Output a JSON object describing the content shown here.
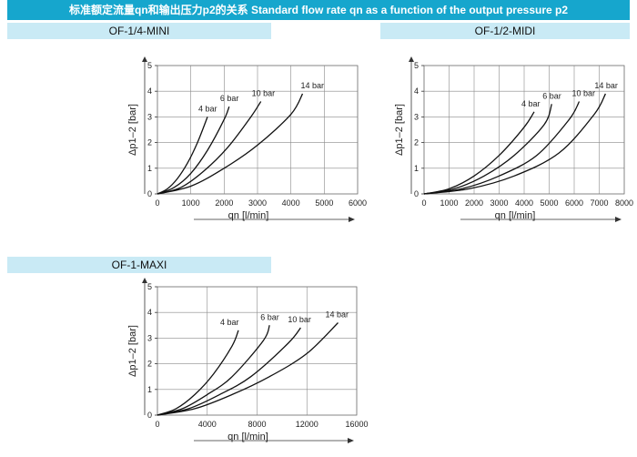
{
  "header": {
    "title": "标准额定流量qn和输出压力p2的关系 Standard flow rate qn as a function of the output pressure p2"
  },
  "chart_data": [
    {
      "type": "line",
      "title": "OF-1/4-MINI",
      "xlabel": "qn [l/min]",
      "ylabel": "Δp1–2 [bar]",
      "xlim": [
        0,
        6000
      ],
      "ylim": [
        0,
        5
      ],
      "xticks": [
        0,
        1000,
        2000,
        3000,
        4000,
        5000,
        6000
      ],
      "yticks": [
        0,
        1,
        2,
        3,
        4,
        5
      ],
      "grid": true,
      "series": [
        {
          "name": "4 bar",
          "x": [
            0,
            300,
            600,
            900,
            1200,
            1500
          ],
          "y": [
            0,
            0.2,
            0.6,
            1.2,
            2.0,
            3.0
          ]
        },
        {
          "name": "6 bar",
          "x": [
            0,
            500,
            1000,
            1500,
            2000,
            2150
          ],
          "y": [
            0,
            0.25,
            0.8,
            1.7,
            2.9,
            3.4
          ]
        },
        {
          "name": "10 bar",
          "x": [
            0,
            700,
            1400,
            2100,
            2800,
            3100
          ],
          "y": [
            0,
            0.25,
            0.9,
            1.8,
            3.0,
            3.6
          ]
        },
        {
          "name": "14 bar",
          "x": [
            0,
            1000,
            2000,
            3000,
            4000,
            4350
          ],
          "y": [
            0,
            0.3,
            1.0,
            1.9,
            3.1,
            3.9
          ]
        }
      ]
    },
    {
      "type": "line",
      "title": "OF-1/2-MIDI",
      "xlabel": "qn [l/min]",
      "ylabel": "Δp1–2 [bar]",
      "xlim": [
        0,
        8000
      ],
      "ylim": [
        0,
        5
      ],
      "xticks": [
        0,
        1000,
        2000,
        3000,
        4000,
        5000,
        6000,
        7000,
        8000
      ],
      "yticks": [
        0,
        1,
        2,
        3,
        4,
        5
      ],
      "grid": true,
      "series": [
        {
          "name": "4 bar",
          "x": [
            0,
            1000,
            2000,
            3000,
            4000,
            4400
          ],
          "y": [
            0,
            0.2,
            0.7,
            1.5,
            2.6,
            3.2
          ]
        },
        {
          "name": "6 bar",
          "x": [
            0,
            1200,
            2400,
            3600,
            4800,
            5100
          ],
          "y": [
            0,
            0.2,
            0.7,
            1.5,
            2.7,
            3.5
          ]
        },
        {
          "name": "10 bar",
          "x": [
            0,
            1500,
            3000,
            4500,
            5800,
            6200
          ],
          "y": [
            0,
            0.2,
            0.7,
            1.5,
            2.9,
            3.6
          ]
        },
        {
          "name": "14 bar",
          "x": [
            0,
            1800,
            3600,
            5400,
            6800,
            7250
          ],
          "y": [
            0,
            0.2,
            0.7,
            1.6,
            3.1,
            3.9
          ]
        }
      ]
    },
    {
      "type": "line",
      "title": "OF-1-MAXI",
      "xlabel": "qn [l/min]",
      "ylabel": "Δp1–2 [bar]",
      "xlim": [
        0,
        16000
      ],
      "ylim": [
        0,
        5
      ],
      "xticks": [
        0,
        4000,
        8000,
        12000,
        16000
      ],
      "xtick_labels": [
        "0",
        "4000",
        "8000",
        "12000",
        "16000"
      ],
      "yticks": [
        0,
        1,
        2,
        3,
        4,
        5
      ],
      "grid": true,
      "series": [
        {
          "name": "4 bar",
          "x": [
            0,
            1500,
            3000,
            4500,
            6000,
            6500
          ],
          "y": [
            0,
            0.25,
            0.8,
            1.6,
            2.7,
            3.3
          ]
        },
        {
          "name": "6 bar",
          "x": [
            0,
            2000,
            4000,
            6000,
            8500,
            9000
          ],
          "y": [
            0,
            0.25,
            0.8,
            1.5,
            2.9,
            3.5
          ]
        },
        {
          "name": "10 bar",
          "x": [
            0,
            2500,
            5000,
            7500,
            10500,
            11500
          ],
          "y": [
            0,
            0.25,
            0.8,
            1.5,
            2.8,
            3.4
          ]
        },
        {
          "name": "14 bar",
          "x": [
            0,
            3000,
            6000,
            9000,
            12000,
            14500
          ],
          "y": [
            0,
            0.25,
            0.8,
            1.5,
            2.4,
            3.6
          ]
        }
      ]
    }
  ]
}
